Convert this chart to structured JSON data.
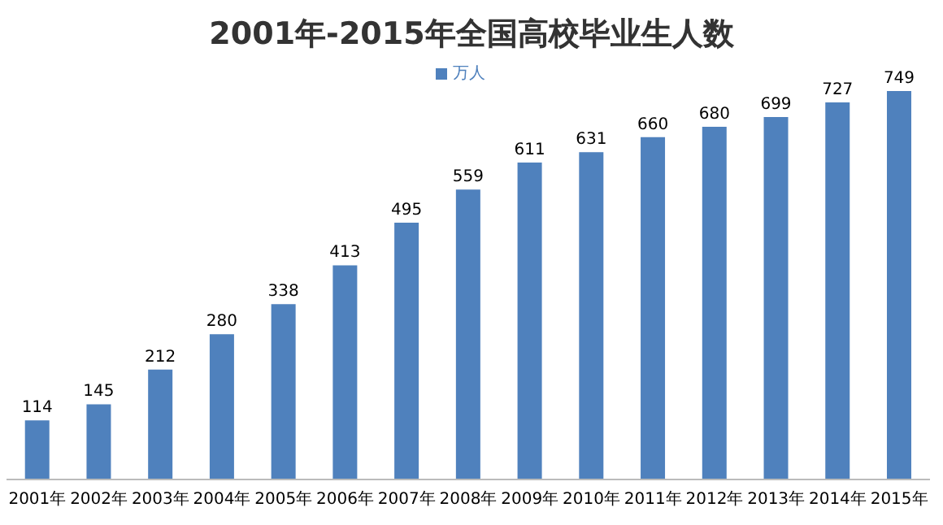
{
  "chart_data": {
    "type": "bar",
    "title": "2001年-2015年全国高校毕业生人数",
    "categories": [
      "2001年",
      "2002年",
      "2003年",
      "2004年",
      "2005年",
      "2006年",
      "2007年",
      "2008年",
      "2009年",
      "2010年",
      "2011年",
      "2012年",
      "2013年",
      "2014年",
      "2015年"
    ],
    "series": [
      {
        "name": "万人",
        "color": "#4f81bd",
        "values": [
          114,
          145,
          212,
          280,
          338,
          413,
          495,
          559,
          611,
          631,
          660,
          680,
          699,
          727,
          749
        ]
      }
    ],
    "data_labels": true,
    "legend": "top",
    "grid": false
  }
}
